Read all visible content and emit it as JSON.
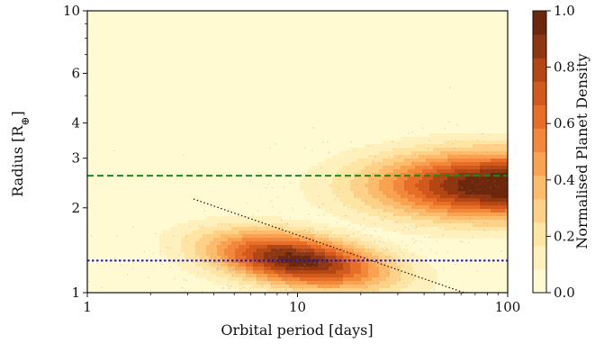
{
  "chart_data": {
    "type": "heatmap",
    "title": "",
    "xlabel": "Orbital period [days]",
    "ylabel": "Radius [R",
    "ylabel_symbol": "⊕",
    "ylabel_suffix": "]",
    "xscale": "log",
    "yscale": "log",
    "xlim": [
      1,
      100
    ],
    "ylim": [
      1,
      10
    ],
    "x_ticks": [
      {
        "value": 1,
        "label": "1"
      },
      {
        "value": 10,
        "label": "10"
      },
      {
        "value": 100,
        "label": "100"
      }
    ],
    "y_ticks": [
      {
        "value": 1,
        "label": "1"
      },
      {
        "value": 2,
        "label": "2"
      },
      {
        "value": 3,
        "label": "3"
      },
      {
        "value": 4,
        "label": "4"
      },
      {
        "value": 6,
        "label": "6"
      },
      {
        "value": 10,
        "label": "10"
      }
    ],
    "density_peaks": [
      {
        "x": 10,
        "y": 1.3,
        "density": 0.95
      },
      {
        "x": 90,
        "y": 2.4,
        "density": 1.0
      }
    ],
    "reference_lines": [
      {
        "orientation": "horizontal",
        "y": 2.6,
        "color": "#1a8a1a",
        "style": "dashed"
      },
      {
        "orientation": "horizontal",
        "y": 1.3,
        "color": "#1414c8",
        "style": "dotted"
      },
      {
        "orientation": "diagonal",
        "x": [
          3.2,
          62
        ],
        "y": [
          2.15,
          1.0
        ],
        "color": "#111111",
        "style": "dotted"
      }
    ],
    "colorbar": {
      "label": "Normalised Planet Density",
      "range": [
        0,
        1
      ],
      "ticks": [
        {
          "value": 0.0,
          "label": "0.0"
        },
        {
          "value": 0.2,
          "label": "0.2"
        },
        {
          "value": 0.4,
          "label": "0.4"
        },
        {
          "value": 0.6,
          "label": "0.6"
        },
        {
          "value": 0.8,
          "label": "0.8"
        },
        {
          "value": 1.0,
          "label": "1.0"
        }
      ],
      "colors": [
        "#fffad2",
        "#fff1bd",
        "#fee5a3",
        "#fdd288",
        "#fcbc6c",
        "#f9a24f",
        "#f3873a",
        "#e86e28",
        "#d2591c",
        "#b44614",
        "#8e3511",
        "#6b280d"
      ]
    }
  }
}
